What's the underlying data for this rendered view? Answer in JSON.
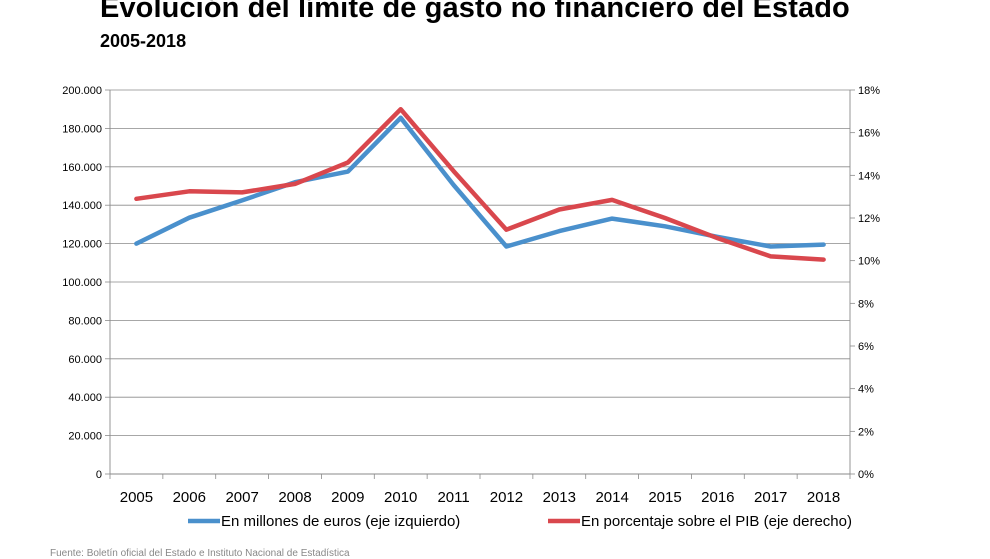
{
  "chart_data": {
    "type": "line",
    "title": "Evolución del límite de gasto no financiero del Estado",
    "subtitle": "2005-2018",
    "categories": [
      "2005",
      "2006",
      "2007",
      "2008",
      "2009",
      "2010",
      "2011",
      "2012",
      "2013",
      "2014",
      "2015",
      "2016",
      "2017",
      "2018"
    ],
    "series": [
      {
        "name": "En millones de euros (eje izquierdo)",
        "axis": "left",
        "color": "#4a90cc",
        "values": [
          120000,
          133500,
          142500,
          152000,
          157500,
          185500,
          150500,
          118500,
          126500,
          133000,
          129000,
          123500,
          118500,
          119500
        ]
      },
      {
        "name": "En porcentaje sobre el PIB (eje derecho)",
        "axis": "right",
        "color": "#d9474d",
        "values": [
          12.9,
          13.25,
          13.2,
          13.6,
          14.6,
          17.1,
          14.2,
          11.45,
          12.4,
          12.85,
          12.0,
          11.05,
          10.2,
          10.05
        ]
      }
    ],
    "y_left": {
      "range": [
        0,
        200000
      ],
      "ticks": [
        0,
        20000,
        40000,
        60000,
        80000,
        100000,
        120000,
        140000,
        160000,
        180000,
        200000
      ],
      "tick_labels": [
        "0",
        "20.000",
        "40.000",
        "60.000",
        "80.000",
        "100.000",
        "120.000",
        "140.000",
        "160.000",
        "180.000",
        "200.000"
      ]
    },
    "y_right": {
      "range": [
        0,
        18
      ],
      "ticks": [
        0,
        2,
        4,
        6,
        8,
        10,
        12,
        14,
        16,
        18
      ],
      "tick_labels": [
        "0%",
        "2%",
        "4%",
        "6%",
        "8%",
        "10%",
        "12%",
        "14%",
        "16%",
        "18%"
      ]
    },
    "grid": true,
    "legend_position": "bottom"
  },
  "footnote": "Fuente: Boletín oficial del Estado e Instituto Nacional de Estadística"
}
